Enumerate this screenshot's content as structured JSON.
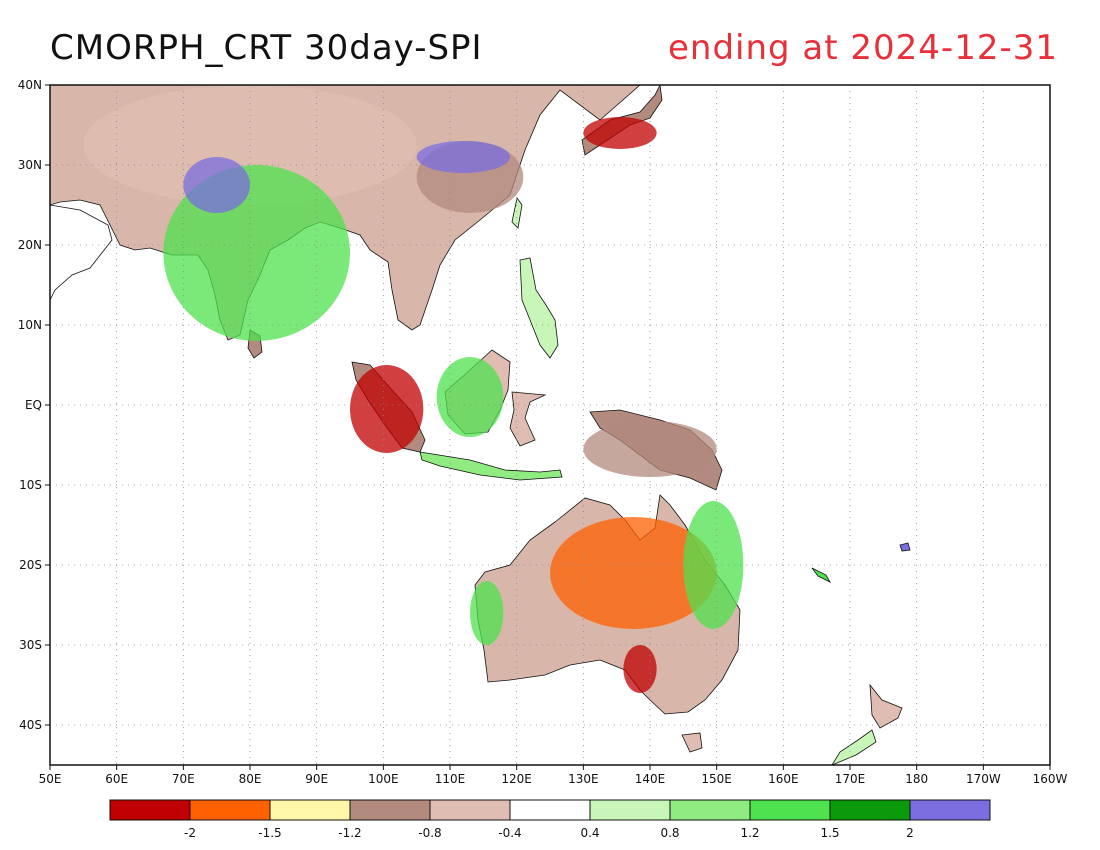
{
  "title": {
    "main": "CMORPH_CRT 30day-SPI",
    "date": "ending at 2024-12-31"
  },
  "axes": {
    "lat_labels": [
      "40N",
      "30N",
      "20N",
      "10N",
      "EQ",
      "10S",
      "20S",
      "30S",
      "40S"
    ],
    "lat_values": [
      40,
      30,
      20,
      10,
      0,
      -10,
      -20,
      -30,
      -40
    ],
    "lon_labels": [
      "50E",
      "60E",
      "70E",
      "80E",
      "90E",
      "100E",
      "110E",
      "120E",
      "130E",
      "140E",
      "150E",
      "160E",
      "170E",
      "180",
      "170W",
      "160W"
    ],
    "lon_values": [
      50,
      60,
      70,
      80,
      90,
      100,
      110,
      120,
      130,
      140,
      150,
      160,
      170,
      180,
      190,
      200
    ],
    "lat_range": [
      -45,
      40
    ],
    "lon_range": [
      50,
      200
    ],
    "grid": true
  },
  "colorbar": {
    "colors": [
      "#c00000",
      "#ff6000",
      "#fff7a8",
      "#b28a7e",
      "#e0bdb2",
      "#ffffff",
      "#c8f6b8",
      "#90ec80",
      "#4ee24e",
      "#0a9a0a",
      "#7a6ee0"
    ],
    "labels": [
      "-2",
      "-1.5",
      "-1.2",
      "-0.8",
      "-0.4",
      "0.4",
      "0.8",
      "1.2",
      "1.5",
      "2"
    ]
  },
  "chart_data": {
    "type": "heatmap",
    "variable": "30day-SPI",
    "source": "CMORPH_CRT",
    "period_end": "2024-12-31",
    "bins": [
      {
        "min": null,
        "max": -2,
        "color": "#c00000"
      },
      {
        "min": -2,
        "max": -1.5,
        "color": "#ff6000"
      },
      {
        "min": -1.5,
        "max": -1.2,
        "color": "#fff7a8"
      },
      {
        "min": -1.2,
        "max": -0.8,
        "color": "#b28a7e"
      },
      {
        "min": -0.8,
        "max": -0.4,
        "color": "#e0bdb2"
      },
      {
        "min": -0.4,
        "max": 0.4,
        "color": "#ffffff"
      },
      {
        "min": 0.4,
        "max": 0.8,
        "color": "#c8f6b8"
      },
      {
        "min": 0.8,
        "max": 1.2,
        "color": "#90ec80"
      },
      {
        "min": 1.2,
        "max": 1.5,
        "color": "#4ee24e"
      },
      {
        "min": 1.5,
        "max": 2,
        "color": "#0a9a0a"
      },
      {
        "min": 2,
        "max": null,
        "color": "#7a6ee0"
      }
    ],
    "xlim": [
      50,
      200
    ],
    "ylim": [
      -45,
      40
    ],
    "regions": [
      {
        "lon": [
          55,
          105
        ],
        "lat": [
          25,
          40
        ],
        "spi": -0.8
      },
      {
        "lon": [
          67,
          95
        ],
        "lat": [
          8,
          30
        ],
        "spi": 1.2
      },
      {
        "lon": [
          70,
          80
        ],
        "lat": [
          24,
          31
        ],
        "spi": 2.2
      },
      {
        "lon": [
          105,
          121
        ],
        "lat": [
          24,
          33
        ],
        "spi": -1.0
      },
      {
        "lon": [
          105,
          119
        ],
        "lat": [
          29,
          33
        ],
        "spi": 2.2
      },
      {
        "lon": [
          130,
          141
        ],
        "lat": [
          32,
          36
        ],
        "spi": -2.2
      },
      {
        "lon": [
          95,
          106
        ],
        "lat": [
          -6,
          5
        ],
        "spi": -2.2
      },
      {
        "lon": [
          108,
          118
        ],
        "lat": [
          -4,
          6
        ],
        "spi": 1.3
      },
      {
        "lon": [
          125,
          150
        ],
        "lat": [
          -28,
          -14
        ],
        "spi": -1.7
      },
      {
        "lon": [
          136,
          141
        ],
        "lat": [
          -36,
          -30
        ],
        "spi": -2.1
      },
      {
        "lon": [
          113,
          118
        ],
        "lat": [
          -30,
          -22
        ],
        "spi": 1.3
      },
      {
        "lon": [
          145,
          154
        ],
        "lat": [
          -28,
          -12
        ],
        "spi": 1.2
      },
      {
        "lon": [
          130,
          150
        ],
        "lat": [
          -9,
          -2
        ],
        "spi": -1.2
      }
    ]
  }
}
